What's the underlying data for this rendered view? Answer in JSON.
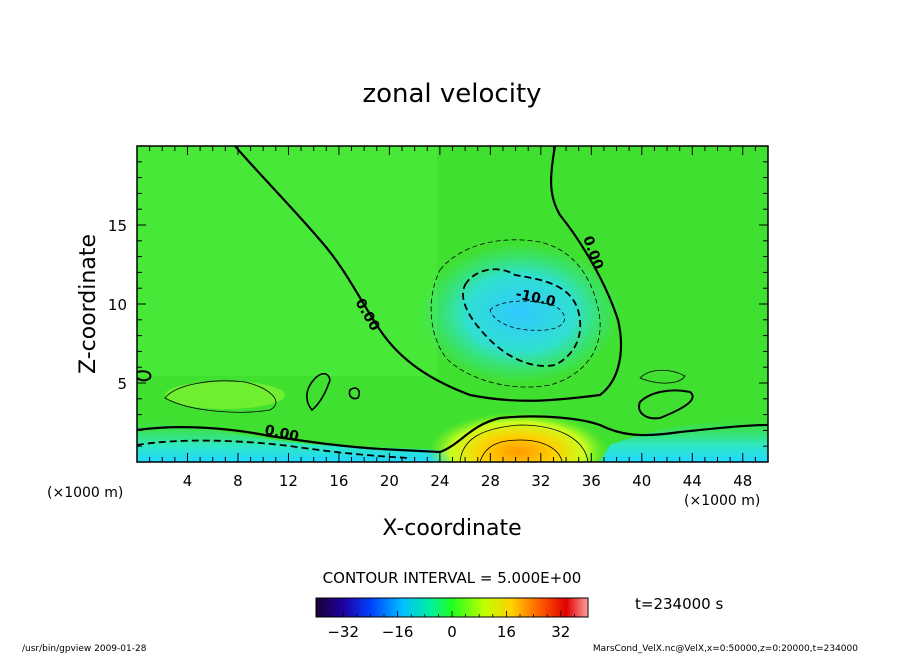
{
  "chart_data": {
    "type": "heatmap",
    "title": "zonal velocity",
    "xlabel": "X-coordinate",
    "ylabel": "Z-coordinate",
    "x_unit_left": "(×1000 m)",
    "x_unit_right": "(×1000 m)",
    "xlim": [
      0,
      50
    ],
    "ylim": [
      0,
      20
    ],
    "x_ticks": [
      4,
      8,
      12,
      16,
      20,
      24,
      28,
      32,
      36,
      40,
      44,
      48
    ],
    "y_ticks": [
      5,
      10,
      15
    ],
    "contour_interval_text": "CONTOUR INTERVAL = 5.000E+00",
    "contour_labels": [
      "0.00",
      "0.00",
      "0.00",
      "-10.0"
    ],
    "colorbar": {
      "range": [
        -40,
        40
      ],
      "ticks": [
        -32,
        -16,
        0,
        16,
        32
      ],
      "colors": [
        "#1a0033",
        "#0000c0",
        "#0080ff",
        "#00e0ff",
        "#00ff80",
        "#40ff00",
        "#c0ff00",
        "#ffd000",
        "#ff6000",
        "#e00000",
        "#ff9090"
      ]
    },
    "time_label": "t=234000 s",
    "features": [
      {
        "name": "negative core",
        "x": 30,
        "z": 9.5,
        "value": -12
      },
      {
        "name": "positive surface jet",
        "x": 30,
        "z": 1,
        "value": 12
      },
      {
        "name": "near-surface negative band",
        "x": 44,
        "z": 0.8,
        "value": -8
      }
    ]
  },
  "footer": {
    "left": "/usr/bin/gpview   2009-01-28",
    "right": "MarsCond_VelX.nc@VelX,x=0:50000,z=0:20000,t=234000"
  }
}
